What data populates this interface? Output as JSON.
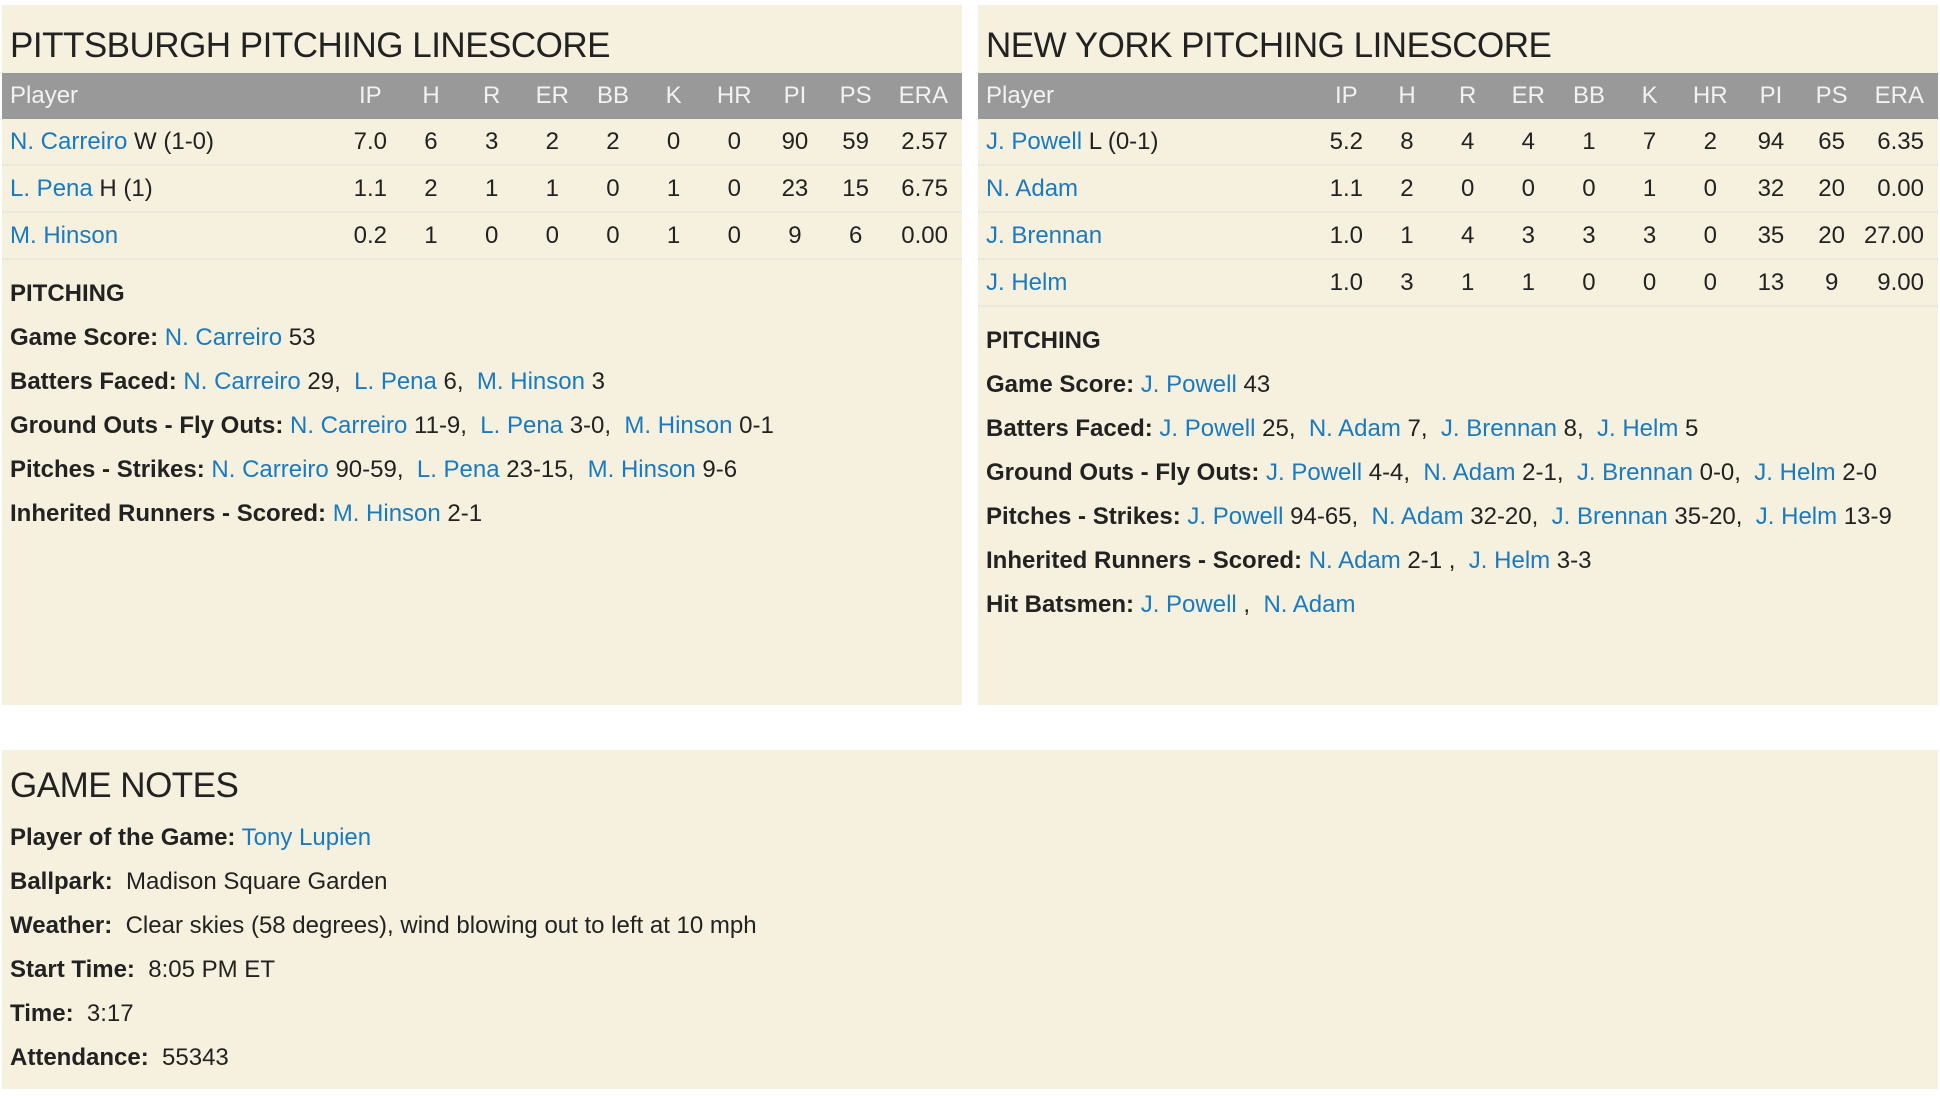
{
  "columns": [
    "Player",
    "IP",
    "H",
    "R",
    "ER",
    "BB",
    "K",
    "HR",
    "PI",
    "PS",
    "ERA"
  ],
  "colors": {
    "background": "#f6f1de",
    "header": "#999999",
    "link": "#1a7abf"
  },
  "pittsburgh": {
    "title": "PITTSBURGH PITCHING LINESCORE",
    "rows": [
      {
        "name": "N. Carreiro",
        "dec": "W (1-0)",
        "stats": [
          "7.0",
          "6",
          "3",
          "2",
          "2",
          "0",
          "0",
          "90",
          "59",
          "2.57"
        ]
      },
      {
        "name": "L. Pena",
        "dec": "H (1)",
        "stats": [
          "1.1",
          "2",
          "1",
          "1",
          "0",
          "1",
          "0",
          "23",
          "15",
          "6.75"
        ]
      },
      {
        "name": "M. Hinson",
        "dec": "",
        "stats": [
          "0.2",
          "1",
          "0",
          "0",
          "0",
          "1",
          "0",
          "9",
          "6",
          "0.00"
        ]
      }
    ],
    "pitching_heading": "PITCHING",
    "lines": [
      {
        "label": "Game Score:",
        "parts": [
          {
            "link": "N. Carreiro",
            "text": " 53"
          }
        ]
      },
      {
        "label": "Batters Faced:",
        "parts": [
          {
            "link": "N. Carreiro",
            "text": " 29, "
          },
          {
            "link": "L. Pena",
            "text": " 6, "
          },
          {
            "link": "M. Hinson",
            "text": " 3"
          }
        ]
      },
      {
        "label": "Ground Outs - Fly Outs:",
        "parts": [
          {
            "link": "N. Carreiro",
            "text": " 11-9, "
          },
          {
            "link": "L. Pena",
            "text": " 3-0, "
          },
          {
            "link": "M. Hinson",
            "text": " 0-1"
          }
        ]
      },
      {
        "label": "Pitches - Strikes:",
        "parts": [
          {
            "link": "N. Carreiro",
            "text": " 90-59, "
          },
          {
            "link": "L. Pena",
            "text": " 23-15, "
          },
          {
            "link": "M. Hinson",
            "text": " 9-6"
          }
        ]
      },
      {
        "label": "Inherited Runners - Scored:",
        "parts": [
          {
            "link": "M. Hinson",
            "text": " 2-1"
          }
        ]
      }
    ]
  },
  "newyork": {
    "title": "NEW YORK PITCHING LINESCORE",
    "rows": [
      {
        "name": "J. Powell",
        "dec": "L (0-1)",
        "stats": [
          "5.2",
          "8",
          "4",
          "4",
          "1",
          "7",
          "2",
          "94",
          "65",
          "6.35"
        ]
      },
      {
        "name": "N. Adam",
        "dec": "",
        "stats": [
          "1.1",
          "2",
          "0",
          "0",
          "0",
          "1",
          "0",
          "32",
          "20",
          "0.00"
        ]
      },
      {
        "name": "J. Brennan",
        "dec": "",
        "stats": [
          "1.0",
          "1",
          "4",
          "3",
          "3",
          "3",
          "0",
          "35",
          "20",
          "27.00"
        ]
      },
      {
        "name": "J. Helm",
        "dec": "",
        "stats": [
          "1.0",
          "3",
          "1",
          "1",
          "0",
          "0",
          "0",
          "13",
          "9",
          "9.00"
        ]
      }
    ],
    "pitching_heading": "PITCHING",
    "lines": [
      {
        "label": "Game Score:",
        "parts": [
          {
            "link": "J. Powell",
            "text": " 43"
          }
        ]
      },
      {
        "label": "Batters Faced:",
        "parts": [
          {
            "link": "J. Powell",
            "text": " 25, "
          },
          {
            "link": "N. Adam",
            "text": " 7, "
          },
          {
            "link": "J. Brennan",
            "text": " 8, "
          },
          {
            "link": "J. Helm",
            "text": " 5"
          }
        ]
      },
      {
        "label": "Ground Outs - Fly Outs:",
        "parts": [
          {
            "link": "J. Powell",
            "text": " 4-4, "
          },
          {
            "link": "N. Adam",
            "text": " 2-1, "
          },
          {
            "link": "J. Brennan",
            "text": " 0-0, "
          },
          {
            "link": "J. Helm",
            "text": " 2-0"
          }
        ]
      },
      {
        "label": "Pitches - Strikes:",
        "parts": [
          {
            "link": "J. Powell",
            "text": " 94-65, "
          },
          {
            "link": "N. Adam",
            "text": " 32-20, "
          },
          {
            "link": "J. Brennan",
            "text": " 35-20, "
          },
          {
            "link": "J. Helm",
            "text": " 13-9"
          }
        ]
      },
      {
        "label": "Inherited Runners - Scored:",
        "parts": [
          {
            "link": "N. Adam",
            "text": " 2-1 , "
          },
          {
            "link": "J. Helm",
            "text": " 3-3"
          }
        ]
      },
      {
        "label": "Hit Batsmen:",
        "parts": [
          {
            "link": "J. Powell",
            "text": " , "
          },
          {
            "link": "N. Adam",
            "text": ""
          }
        ]
      }
    ]
  },
  "notes": {
    "title": "GAME NOTES",
    "lines": [
      {
        "label": "Player of the Game:",
        "parts": [
          {
            "link": "Tony Lupien",
            "text": ""
          }
        ]
      },
      {
        "label": "Ballpark:",
        "parts": [
          {
            "text": "  Madison Square Garden"
          }
        ]
      },
      {
        "label": "Weather:",
        "parts": [
          {
            "text": "  Clear skies (58 degrees), wind blowing out to left at 10 mph"
          }
        ]
      },
      {
        "label": "Start Time:",
        "parts": [
          {
            "text": "  8:05 PM ET"
          }
        ]
      },
      {
        "label": "Time:",
        "parts": [
          {
            "text": "  3:17"
          }
        ]
      },
      {
        "label": "Attendance:",
        "parts": [
          {
            "text": "  55343"
          }
        ]
      }
    ]
  }
}
